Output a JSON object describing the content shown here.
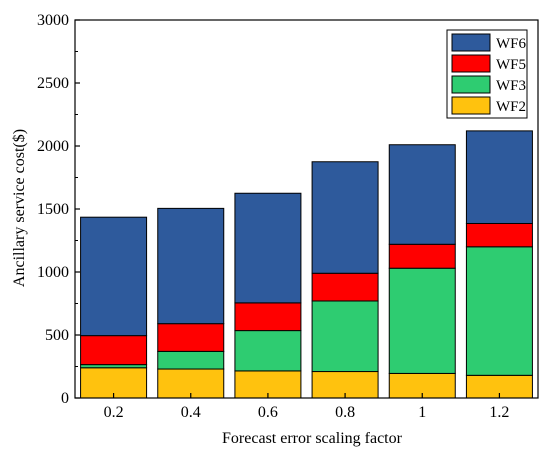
{
  "chart_data": {
    "type": "bar",
    "stacked": true,
    "categories": [
      "0.2",
      "0.4",
      "0.6",
      "0.8",
      "1",
      "1.2"
    ],
    "series": [
      {
        "name": "WF2",
        "color": "#FFC20E",
        "values": [
          240,
          230,
          215,
          210,
          195,
          180
        ]
      },
      {
        "name": "WF3",
        "color": "#2ECC71",
        "values": [
          25,
          140,
          320,
          560,
          835,
          1020
        ]
      },
      {
        "name": "WF5",
        "color": "#FF0000",
        "values": [
          230,
          220,
          220,
          220,
          190,
          185
        ]
      },
      {
        "name": "WF6",
        "color": "#2E5A9C",
        "values": [
          940,
          915,
          870,
          885,
          790,
          735
        ]
      }
    ],
    "legend_order": [
      "WF6",
      "WF5",
      "WF3",
      "WF2"
    ],
    "legend_position": "top-right",
    "xlabel": "Forecast error scaling factor",
    "ylabel": "Ancillary service cost($)",
    "ylim": [
      0,
      3000
    ],
    "yticks": [
      0,
      500,
      1000,
      1500,
      2000,
      2500,
      3000
    ],
    "grid": false
  }
}
